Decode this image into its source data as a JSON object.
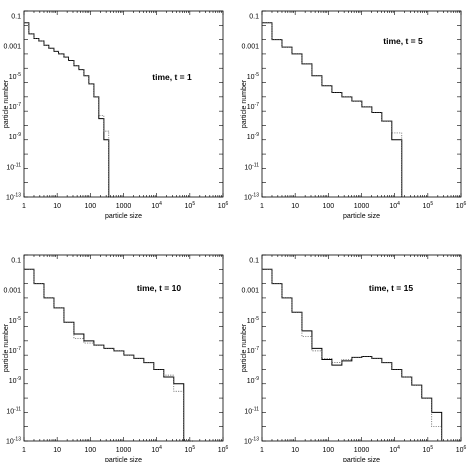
{
  "chart_data": [
    {
      "type": "line",
      "title": "",
      "annotation": "time, t = 1",
      "xlabel": "particle size",
      "ylabel": "particle number",
      "xscale": "log",
      "yscale": "log",
      "xlim": [
        1,
        1000000
      ],
      "ylim": [
        1e-13,
        1
      ],
      "x_ticks": [
        {
          "base": "1",
          "exp": ""
        },
        {
          "base": "10",
          "exp": ""
        },
        {
          "base": "100",
          "exp": ""
        },
        {
          "base": "1000",
          "exp": ""
        },
        {
          "base": "10",
          "exp": "4"
        },
        {
          "base": "10",
          "exp": "5"
        },
        {
          "base": "10",
          "exp": "6"
        }
      ],
      "y_ticks": [
        {
          "base": "0.1",
          "exp": ""
        },
        {
          "base": "0.001",
          "exp": ""
        },
        {
          "base": "10",
          "exp": "-5"
        },
        {
          "base": "10",
          "exp": "-7"
        },
        {
          "base": "10",
          "exp": "-9"
        },
        {
          "base": "10",
          "exp": "-11"
        },
        {
          "base": "10",
          "exp": "-13"
        }
      ],
      "series": [
        {
          "style": "solid",
          "edges": [
            1,
            1.4,
            2,
            2.8,
            4,
            5.6,
            8,
            11,
            16,
            22,
            32,
            45,
            64,
            90,
            128,
            180,
            256,
            360,
            512
          ],
          "values": [
            0.15,
            0.025,
            0.012,
            0.008,
            0.004,
            0.0025,
            0.0015,
            0.001,
            0.0006,
            0.00035,
            0.00015,
            8e-05,
            3e-05,
            8e-06,
            1e-06,
            3e-08,
            1e-09,
            1e-13
          ]
        },
        {
          "style": "dotted",
          "edges": [
            1,
            1.4,
            2,
            2.8,
            4,
            5.6,
            8,
            11,
            16,
            22,
            32,
            45,
            64,
            90,
            128,
            180,
            256,
            360,
            512
          ],
          "values": [
            0.15,
            0.025,
            0.012,
            0.008,
            0.004,
            0.0025,
            0.0015,
            0.001,
            0.0006,
            0.00035,
            0.00015,
            8e-05,
            3e-05,
            8e-06,
            1e-06,
            5e-08,
            4e-09,
            1e-13
          ]
        }
      ]
    },
    {
      "type": "line",
      "title": "",
      "annotation": "time, t = 5",
      "xlabel": "particle size",
      "ylabel": "particle number",
      "xscale": "log",
      "yscale": "log",
      "xlim": [
        1,
        1000000
      ],
      "ylim": [
        1e-13,
        1
      ],
      "x_ticks": [
        {
          "base": "1",
          "exp": ""
        },
        {
          "base": "10",
          "exp": ""
        },
        {
          "base": "100",
          "exp": ""
        },
        {
          "base": "1000",
          "exp": ""
        },
        {
          "base": "10",
          "exp": "4"
        },
        {
          "base": "10",
          "exp": "5"
        },
        {
          "base": "10",
          "exp": "6"
        }
      ],
      "y_ticks": [
        {
          "base": "0.1",
          "exp": ""
        },
        {
          "base": "0.001",
          "exp": ""
        },
        {
          "base": "10",
          "exp": "-5"
        },
        {
          "base": "10",
          "exp": "-7"
        },
        {
          "base": "10",
          "exp": "-9"
        },
        {
          "base": "10",
          "exp": "-11"
        },
        {
          "base": "10",
          "exp": "-13"
        }
      ],
      "series": [
        {
          "style": "solid",
          "edges": [
            1,
            2,
            4,
            8,
            16,
            32,
            64,
            128,
            256,
            512,
            1024,
            2048,
            4096,
            8192,
            16384
          ],
          "values": [
            0.15,
            0.01,
            0.003,
            0.001,
            0.0002,
            3e-05,
            6e-06,
            2e-06,
            1e-06,
            5e-07,
            2e-07,
            8e-08,
            2e-08,
            1e-09
          ]
        },
        {
          "style": "dotted",
          "edges": [
            1,
            2,
            4,
            8,
            16,
            32,
            64,
            128,
            256,
            512,
            1024,
            2048,
            4096,
            8192,
            16384
          ],
          "values": [
            0.15,
            0.01,
            0.003,
            0.001,
            0.0002,
            3e-05,
            6e-06,
            2e-06,
            1e-06,
            5e-07,
            2e-07,
            8e-08,
            2e-08,
            3e-09
          ]
        }
      ]
    },
    {
      "type": "line",
      "title": "",
      "annotation": "time, t = 10",
      "xlabel": "particle size",
      "ylabel": "particle number",
      "xscale": "log",
      "yscale": "log",
      "xlim": [
        1,
        1000000
      ],
      "ylim": [
        1e-13,
        1
      ],
      "x_ticks": [
        {
          "base": "1",
          "exp": ""
        },
        {
          "base": "10",
          "exp": ""
        },
        {
          "base": "100",
          "exp": ""
        },
        {
          "base": "1000",
          "exp": ""
        },
        {
          "base": "10",
          "exp": "4"
        },
        {
          "base": "10",
          "exp": "5"
        },
        {
          "base": "10",
          "exp": "6"
        }
      ],
      "y_ticks": [
        {
          "base": "0.1",
          "exp": ""
        },
        {
          "base": "0.001",
          "exp": ""
        },
        {
          "base": "10",
          "exp": "-5"
        },
        {
          "base": "10",
          "exp": "-7"
        },
        {
          "base": "10",
          "exp": "-9"
        },
        {
          "base": "10",
          "exp": "-11"
        },
        {
          "base": "10",
          "exp": "-13"
        }
      ],
      "series": [
        {
          "style": "solid",
          "edges": [
            1,
            2,
            4,
            8,
            16,
            32,
            64,
            128,
            256,
            512,
            1024,
            2048,
            4096,
            8192,
            16384,
            32768,
            65536,
            131072
          ],
          "values": [
            0.1,
            0.01,
            0.001,
            0.0002,
            2e-05,
            3e-06,
            1e-06,
            5e-07,
            3e-07,
            2e-07,
            1e-07,
            6e-08,
            3e-08,
            1e-08,
            3e-09,
            1e-09,
            1e-13
          ]
        },
        {
          "style": "dotted",
          "edges": [
            1,
            2,
            4,
            8,
            16,
            32,
            64,
            128,
            256,
            512,
            1024,
            2048,
            4096,
            8192,
            16384,
            32768,
            65536,
            131072
          ],
          "values": [
            0.1,
            0.01,
            0.001,
            0.0002,
            2e-05,
            1.5e-06,
            7e-07,
            5e-07,
            3e-07,
            2e-07,
            1e-07,
            6e-08,
            3e-08,
            1e-08,
            4e-09,
            3e-10,
            1e-13
          ]
        }
      ]
    },
    {
      "type": "line",
      "title": "",
      "annotation": "time, t = 15",
      "xlabel": "particle size",
      "ylabel": "particle number",
      "xscale": "log",
      "yscale": "log",
      "xlim": [
        1,
        1000000
      ],
      "ylim": [
        1e-13,
        1
      ],
      "x_ticks": [
        {
          "base": "1",
          "exp": ""
        },
        {
          "base": "10",
          "exp": ""
        },
        {
          "base": "100",
          "exp": ""
        },
        {
          "base": "1000",
          "exp": ""
        },
        {
          "base": "10",
          "exp": "4"
        },
        {
          "base": "10",
          "exp": "5"
        },
        {
          "base": "10",
          "exp": "6"
        }
      ],
      "y_ticks": [
        {
          "base": "0.1",
          "exp": ""
        },
        {
          "base": "0.001",
          "exp": ""
        },
        {
          "base": "10",
          "exp": "-5"
        },
        {
          "base": "10",
          "exp": "-7"
        },
        {
          "base": "10",
          "exp": "-9"
        },
        {
          "base": "10",
          "exp": "-11"
        },
        {
          "base": "10",
          "exp": "-13"
        }
      ],
      "series": [
        {
          "style": "solid",
          "edges": [
            1,
            2,
            4,
            8,
            16,
            32,
            64,
            128,
            256,
            512,
            1024,
            2048,
            4096,
            8192,
            16384,
            32768,
            65536,
            131072,
            262144
          ],
          "values": [
            0.1,
            0.01,
            0.001,
            0.0001,
            5e-06,
            3e-07,
            5e-08,
            2e-08,
            4e-08,
            7e-08,
            8e-08,
            6e-08,
            3e-08,
            1e-08,
            3e-09,
            8e-10,
            1e-10,
            1e-11
          ]
        },
        {
          "style": "dotted",
          "edges": [
            1,
            2,
            4,
            8,
            16,
            32,
            64,
            128,
            256,
            512,
            1024,
            2048,
            4096,
            8192,
            16384,
            32768,
            65536,
            131072,
            262144
          ],
          "values": [
            0.1,
            0.01,
            0.001,
            0.0001,
            2e-06,
            2e-07,
            6e-08,
            3e-08,
            5e-08,
            7e-08,
            8e-08,
            6e-08,
            3e-08,
            1e-08,
            3e-09,
            8e-10,
            1e-10,
            1e-12
          ]
        }
      ]
    }
  ]
}
